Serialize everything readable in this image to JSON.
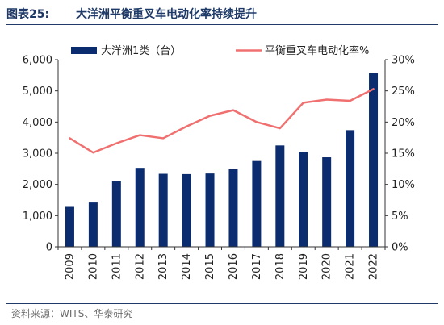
{
  "figure": {
    "label": "图表25:",
    "title": "大洋洲平衡重叉车电动化率持续提升",
    "source": "资料来源：WITS、华泰研究"
  },
  "colors": {
    "bar": "#0b2c6e",
    "line": "#f07070",
    "axis": "#333333"
  },
  "chart_data": {
    "type": "bar",
    "categories": [
      "2009",
      "2010",
      "2011",
      "2012",
      "2013",
      "2014",
      "2015",
      "2016",
      "2017",
      "2018",
      "2019",
      "2020",
      "2021",
      "2022"
    ],
    "series": [
      {
        "name": "大洋洲1类（台）",
        "type": "bar",
        "axis": "left",
        "values": [
          1280,
          1420,
          2100,
          2530,
          2340,
          2330,
          2350,
          2490,
          2750,
          3250,
          3050,
          2870,
          3740,
          5570
        ]
      },
      {
        "name": "平衡重叉车电动化率%",
        "type": "line",
        "axis": "right",
        "values": [
          17.4,
          15.1,
          16.6,
          17.9,
          17.4,
          19.3,
          21.0,
          21.9,
          20.0,
          19.0,
          23.1,
          23.6,
          23.4,
          25.3
        ]
      }
    ],
    "ylim_left": [
      0,
      6000
    ],
    "yticks_left": [
      "0",
      "1,000",
      "2,000",
      "3,000",
      "4,000",
      "5,000",
      "6,000"
    ],
    "ylim_right": [
      0,
      30
    ],
    "yticks_right": [
      "0%",
      "5%",
      "10%",
      "15%",
      "20%",
      "25%",
      "30%"
    ],
    "grid": false,
    "legend_position": "top"
  }
}
